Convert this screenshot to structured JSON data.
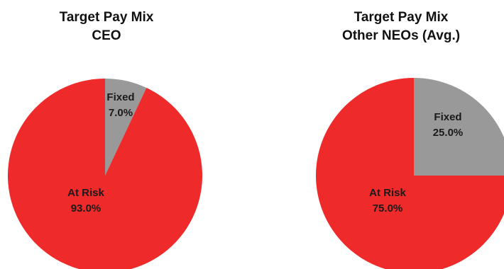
{
  "chart_data": [
    {
      "type": "pie",
      "title": "Target Pay Mix",
      "subtitle": "CEO",
      "slices": [
        {
          "label": "Fixed",
          "value": 7.0,
          "value_label": "7.0%",
          "color": "#999999",
          "label_color": "#1a1a1a"
        },
        {
          "label": "At Risk",
          "value": 93.0,
          "value_label": "93.0%",
          "color": "#ee2a2a",
          "label_color": "#1a1a1a"
        }
      ]
    },
    {
      "type": "pie",
      "title": "Target Pay Mix",
      "subtitle": "Other NEOs (Avg.)",
      "slices": [
        {
          "label": "Fixed",
          "value": 25.0,
          "value_label": "25.0%",
          "color": "#999999",
          "label_color": "#1a1a1a"
        },
        {
          "label": "At Risk",
          "value": 75.0,
          "value_label": "75.0%",
          "color": "#ee2a2a",
          "label_color": "#1a1a1a"
        }
      ]
    }
  ]
}
